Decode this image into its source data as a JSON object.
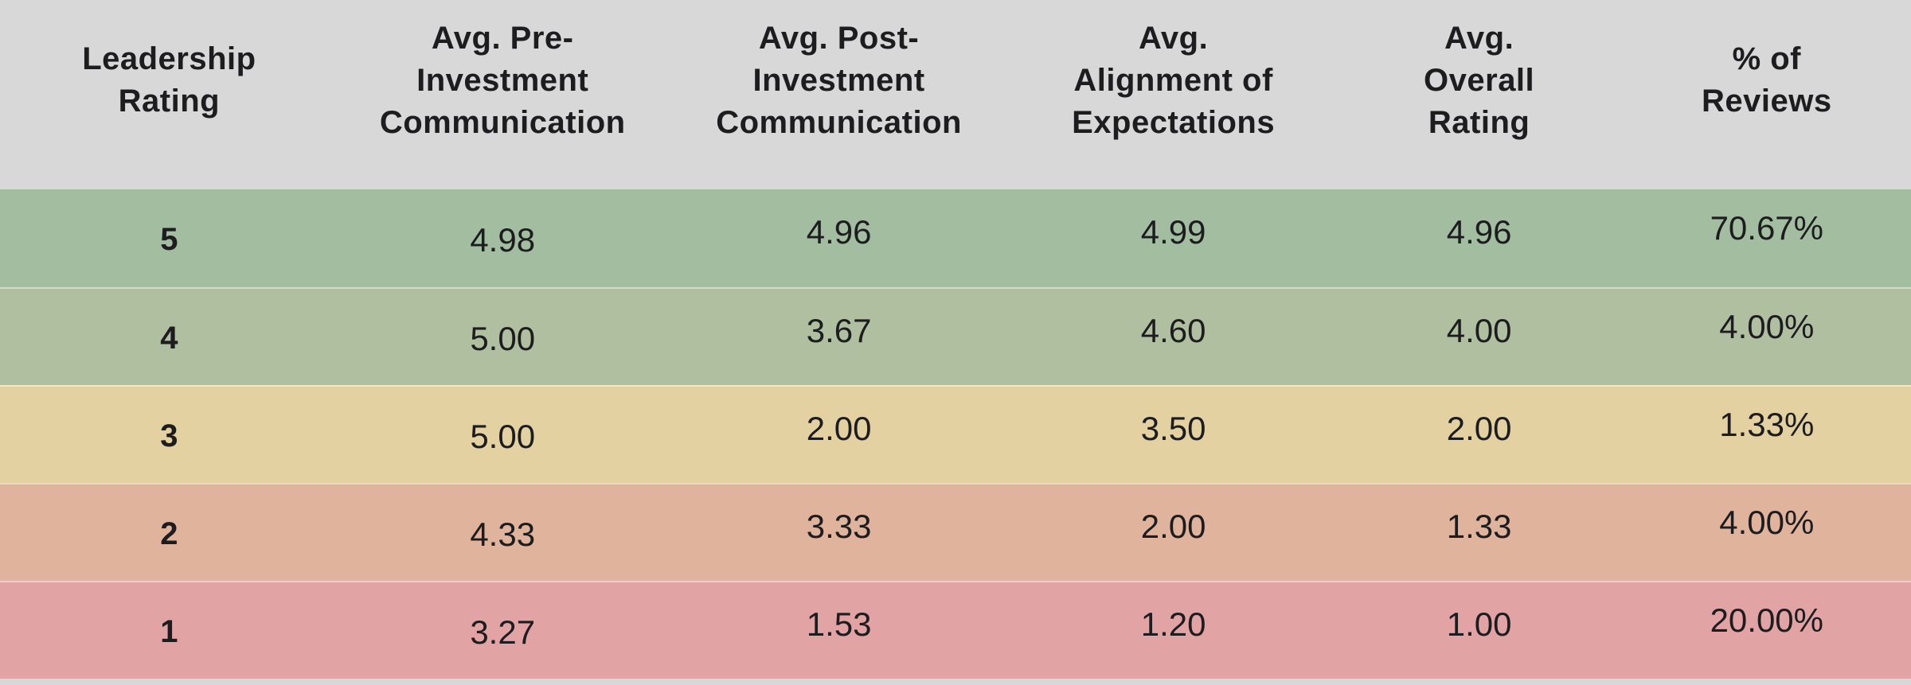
{
  "table": {
    "columns": [
      {
        "label": "Leadership\nRating"
      },
      {
        "label": "Avg. Pre-\nInvestment\nCommunication"
      },
      {
        "label": "Avg. Post-\nInvestment\nCommunication"
      },
      {
        "label": "Avg.\nAlignment of\nExpectations"
      },
      {
        "label": "Avg.\nOverall\nRating"
      },
      {
        "label": "% of\nReviews"
      }
    ],
    "rows": [
      {
        "leadership_rating": "5",
        "avg_pre_investment_communication": "4.98",
        "avg_post_investment_communication": "4.96",
        "avg_alignment_of_expectations": "4.99",
        "avg_overall_rating": "4.96",
        "percent_of_reviews": "70.67%",
        "row_color": "#a2bd9f"
      },
      {
        "leadership_rating": "4",
        "avg_pre_investment_communication": "5.00",
        "avg_post_investment_communication": "3.67",
        "avg_alignment_of_expectations": "4.60",
        "avg_overall_rating": "4.00",
        "percent_of_reviews": "4.00%",
        "row_color": "#b1bfa1"
      },
      {
        "leadership_rating": "3",
        "avg_pre_investment_communication": "5.00",
        "avg_post_investment_communication": "2.00",
        "avg_alignment_of_expectations": "3.50",
        "avg_overall_rating": "2.00",
        "percent_of_reviews": "1.33%",
        "row_color": "#e3d1a1"
      },
      {
        "leadership_rating": "2",
        "avg_pre_investment_communication": "4.33",
        "avg_post_investment_communication": "3.33",
        "avg_alignment_of_expectations": "2.00",
        "avg_overall_rating": "1.33",
        "percent_of_reviews": "4.00%",
        "row_color": "#e0b49c"
      },
      {
        "leadership_rating": "1",
        "avg_pre_investment_communication": "3.27",
        "avg_post_investment_communication": "1.53",
        "avg_alignment_of_expectations": "1.20",
        "avg_overall_rating": "1.00",
        "percent_of_reviews": "20.00%",
        "row_color": "#e2a3a4"
      }
    ],
    "colors": {
      "header_bg": "#d8d8d8",
      "text": "#1d1d1f",
      "row_divider": "rgba(255,255,255,0.45)"
    }
  }
}
